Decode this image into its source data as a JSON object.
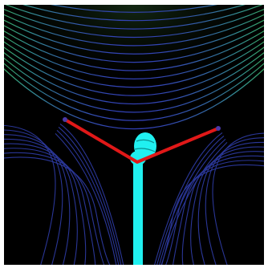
{
  "scene": {
    "background_color": "#000000",
    "border_color": "#ffffff",
    "contour_colors": {
      "top": "#3fbf5a",
      "middle": "#3aa3a0",
      "bottom": "#3848c8"
    },
    "v_shape_color": "#e01818",
    "stem_color": "#20f0f0",
    "marker_color": "#20f0f0"
  }
}
